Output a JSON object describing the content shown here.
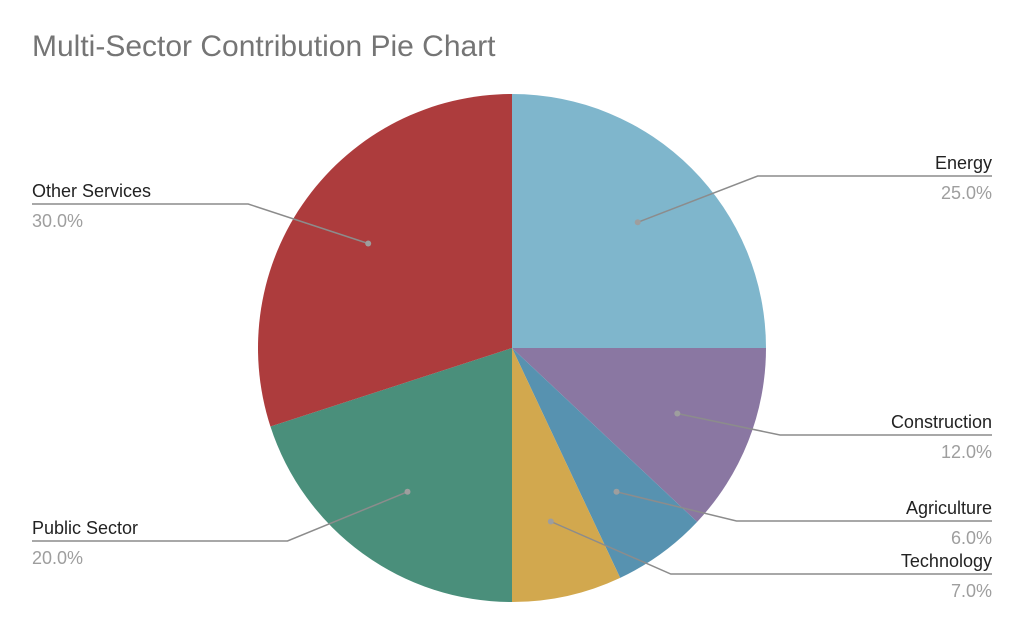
{
  "chart_data": {
    "type": "pie",
    "title": "Multi-Sector Contribution Pie Chart",
    "slices": [
      {
        "label": "Energy",
        "value": 25.0,
        "display": "25.0%",
        "color": "#7fb6cc"
      },
      {
        "label": "Construction",
        "value": 12.0,
        "display": "12.0%",
        "color": "#8a77a2"
      },
      {
        "label": "Agriculture",
        "value": 6.0,
        "display": "6.0%",
        "color": "#5792b0"
      },
      {
        "label": "Technology",
        "value": 7.0,
        "display": "7.0%",
        "color": "#d2a84e"
      },
      {
        "label": "Public Sector",
        "value": 20.0,
        "display": "20.0%",
        "color": "#4a8f7b"
      },
      {
        "label": "Other Services",
        "value": 30.0,
        "display": "30.0%",
        "color": "#ad3c3d"
      }
    ],
    "start_angle": "12 o'clock",
    "direction": "clockwise",
    "legend": "none"
  }
}
